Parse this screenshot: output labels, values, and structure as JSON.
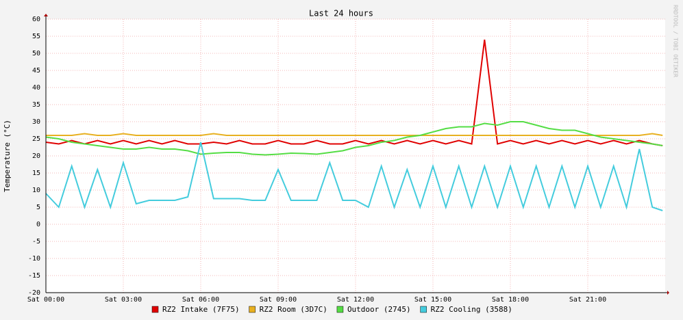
{
  "chart_data": {
    "type": "line",
    "title": "Last 24 hours",
    "y_label": "Temperature (°C)",
    "watermark": "RRDTOOL / TOBI OETIKER",
    "x": [
      0,
      0.5,
      1,
      1.5,
      2,
      2.5,
      3,
      3.5,
      4,
      4.5,
      5,
      5.5,
      6,
      6.5,
      7,
      7.5,
      8,
      8.5,
      9,
      9.5,
      10,
      10.5,
      11,
      11.5,
      12,
      12.5,
      13,
      13.5,
      14,
      14.5,
      15,
      15.5,
      16,
      16.5,
      17,
      17.5,
      18,
      18.5,
      19,
      19.5,
      20,
      20.5,
      21,
      21.5,
      22,
      22.5,
      23,
      23.5,
      23.9
    ],
    "series": [
      {
        "name": "RZ2 Intake (7F75)",
        "color": "#e00000",
        "values": [
          24,
          23.5,
          24.5,
          23.5,
          24.5,
          23.5,
          24.5,
          23.5,
          24.5,
          23.5,
          24.5,
          23.5,
          23.5,
          24,
          23.5,
          24.5,
          23.5,
          23.5,
          24.5,
          23.5,
          23.5,
          24.5,
          23.5,
          23.5,
          24.5,
          23.5,
          24.5,
          23.5,
          24.5,
          23.5,
          24.5,
          23.5,
          24.5,
          23.5,
          54,
          23.5,
          24.5,
          23.5,
          24.5,
          23.5,
          24.5,
          23.5,
          24.5,
          23.5,
          24.5,
          23.5,
          24.5,
          23.5,
          23
        ]
      },
      {
        "name": "RZ2 Room (3D7C)",
        "color": "#e8b020",
        "values": [
          26,
          26,
          26,
          26.5,
          26,
          26,
          26.5,
          26,
          26,
          26,
          26,
          26,
          26,
          26.5,
          26,
          26,
          26,
          26,
          26,
          26,
          26,
          26,
          26,
          26,
          26,
          26,
          26,
          26,
          26,
          26,
          26,
          26,
          26,
          26,
          26,
          26,
          26,
          26,
          26,
          26,
          26,
          26,
          26,
          26,
          26,
          26,
          26,
          26.5,
          26
        ]
      },
      {
        "name": "Outdoor (2745)",
        "color": "#55dd44",
        "values": [
          25.5,
          25,
          24,
          23.5,
          23,
          22.5,
          22,
          22,
          22.5,
          22,
          22,
          21.5,
          20.5,
          20.8,
          21,
          21,
          20.5,
          20.3,
          20.5,
          20.8,
          20.7,
          20.5,
          21,
          21.5,
          22.5,
          23,
          24,
          24.5,
          25.5,
          26,
          27,
          28,
          28.5,
          28.5,
          29.5,
          29,
          30,
          30,
          29,
          28,
          27.5,
          27.5,
          26.5,
          25.5,
          25,
          24.5,
          24,
          23.5,
          23
        ]
      },
      {
        "name": "RZ2 Cooling (3588)",
        "color": "#44ccdd",
        "values": [
          9,
          5,
          17,
          5,
          16,
          5,
          18,
          6,
          7,
          7,
          7,
          8,
          24,
          7.5,
          7.5,
          7.5,
          7,
          7,
          16,
          7,
          7,
          7,
          18,
          7,
          7,
          5,
          17,
          5,
          16,
          5,
          17,
          5,
          17,
          5,
          17,
          5,
          17,
          5,
          17,
          5,
          17,
          5,
          17,
          5,
          17,
          5,
          22,
          5,
          4
        ]
      }
    ],
    "xlim": [
      0,
      24
    ],
    "ylim": [
      -20,
      60
    ],
    "xticks": [
      {
        "value": 0,
        "label": "Sat 00:00"
      },
      {
        "value": 3,
        "label": "Sat 03:00"
      },
      {
        "value": 6,
        "label": "Sat 06:00"
      },
      {
        "value": 9,
        "label": "Sat 09:00"
      },
      {
        "value": 12,
        "label": "Sat 12:00"
      },
      {
        "value": 15,
        "label": "Sat 15:00"
      },
      {
        "value": 18,
        "label": "Sat 18:00"
      },
      {
        "value": 21,
        "label": "Sat 21:00"
      }
    ],
    "yticks": [
      -20,
      -15,
      -10,
      -5,
      0,
      5,
      10,
      15,
      20,
      25,
      30,
      35,
      40,
      45,
      50,
      55,
      60
    ],
    "grid": true
  }
}
